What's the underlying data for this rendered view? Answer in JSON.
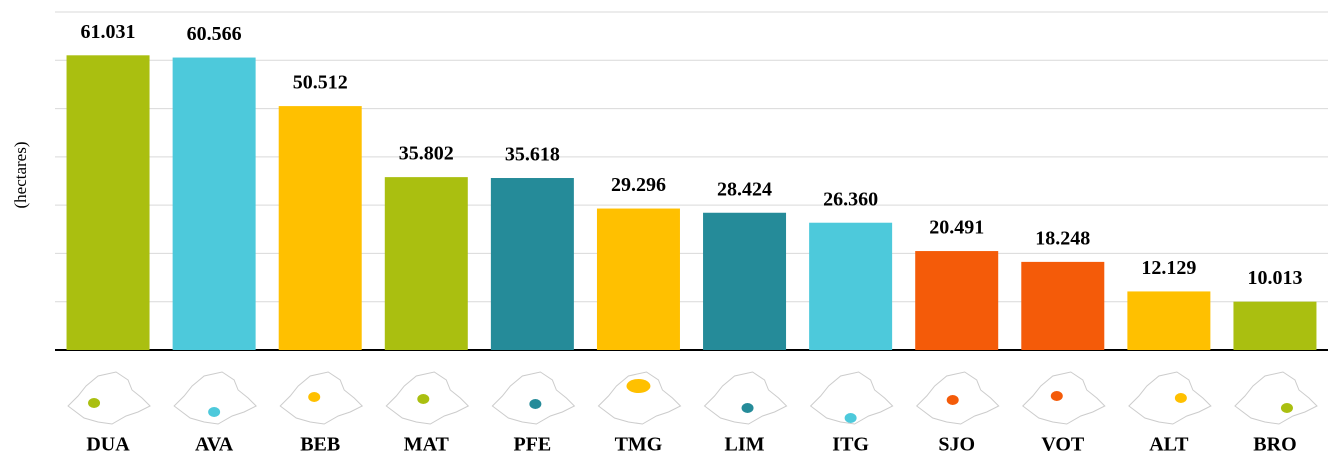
{
  "chart_data": {
    "type": "bar",
    "y_label": "(hectares)",
    "categories": [
      "DUA",
      "AVA",
      "BEB",
      "MAT",
      "PFE",
      "TMG",
      "LIM",
      "ITG",
      "SJO",
      "VOT",
      "ALT",
      "BRO"
    ],
    "values": [
      61031,
      60566,
      50512,
      35802,
      35618,
      29296,
      28424,
      26360,
      20491,
      18248,
      12129,
      10013
    ],
    "value_labels": [
      "61.031",
      "60.566",
      "50.512",
      "35.802",
      "35.618",
      "29.296",
      "28.424",
      "26.360",
      "20.491",
      "18.248",
      "12.129",
      "10.013"
    ],
    "colors": [
      "#aabf10",
      "#4dc9db",
      "#ffc000",
      "#aabf10",
      "#258b99",
      "#ffc000",
      "#258b99",
      "#4dc9db",
      "#f45b09",
      "#f45b09",
      "#ffc000",
      "#aabf10"
    ],
    "ylim": [
      0,
      70000
    ],
    "yticks": [
      0,
      10000,
      20000,
      30000,
      40000,
      50000,
      60000,
      70000
    ],
    "grid": true
  }
}
